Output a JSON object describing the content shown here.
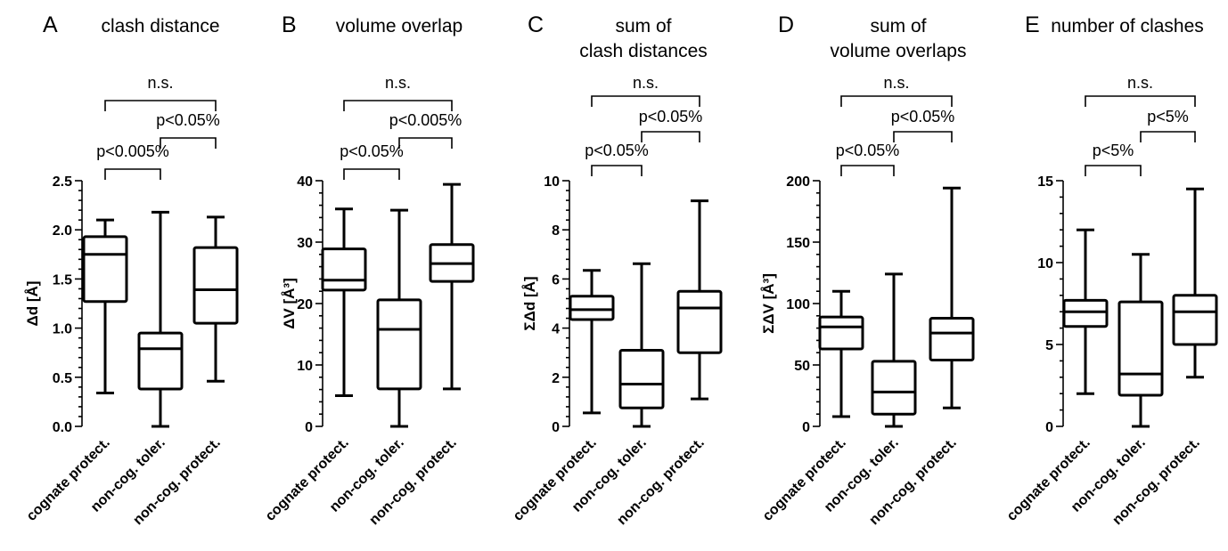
{
  "chart_data": [
    {
      "type": "box",
      "letter": "A",
      "title": [
        "clash distance"
      ],
      "ylabel": "Δd [Å]",
      "ylim": [
        0,
        2.5
      ],
      "yticks": [
        "0.0",
        "0.5",
        "1.0",
        "1.5",
        "2.0",
        "2.5"
      ],
      "categories": [
        "cognate protect.",
        "non-cog. toler.",
        "non-cog. protect."
      ],
      "boxes": [
        {
          "min": 0.34,
          "q1": 1.27,
          "median": 1.75,
          "q3": 1.93,
          "max": 2.1
        },
        {
          "min": 0.0,
          "q1": 0.38,
          "median": 0.79,
          "q3": 0.95,
          "max": 2.18
        },
        {
          "min": 0.46,
          "q1": 1.05,
          "median": 1.39,
          "q3": 1.82,
          "max": 2.13
        }
      ],
      "comparisons": [
        {
          "from": 0,
          "to": 1,
          "label": "p<0.005%"
        },
        {
          "from": 1,
          "to": 2,
          "label": "p<0.05%"
        },
        {
          "from": 0,
          "to": 2,
          "label": "n.s."
        }
      ]
    },
    {
      "type": "box",
      "letter": "B",
      "title": [
        "volume overlap"
      ],
      "ylabel": "ΔV [Å³]",
      "ylim": [
        0,
        40
      ],
      "yticks": [
        "0",
        "10",
        "20",
        "30",
        "40"
      ],
      "categories": [
        "cognate protect.",
        "non-cog. toler.",
        "non-cog. protect."
      ],
      "boxes": [
        {
          "min": 5.0,
          "q1": 22.2,
          "median": 23.8,
          "q3": 28.9,
          "max": 35.4
        },
        {
          "min": 0.0,
          "q1": 6.1,
          "median": 15.8,
          "q3": 20.6,
          "max": 35.2
        },
        {
          "min": 6.1,
          "q1": 23.6,
          "median": 26.5,
          "q3": 29.6,
          "max": 39.4
        }
      ],
      "comparisons": [
        {
          "from": 0,
          "to": 1,
          "label": "p<0.05%"
        },
        {
          "from": 1,
          "to": 2,
          "label": "p<0.005%"
        },
        {
          "from": 0,
          "to": 2,
          "label": "n.s."
        }
      ]
    },
    {
      "type": "box",
      "letter": "C",
      "title": [
        "sum of",
        "clash distances"
      ],
      "ylabel": "ΣΔd [Å]",
      "ylim": [
        0,
        10
      ],
      "yticks": [
        "0",
        "2",
        "4",
        "6",
        "8",
        "10"
      ],
      "categories": [
        "cognate protect.",
        "non-cog. toler.",
        "non-cog. protect."
      ],
      "boxes": [
        {
          "min": 0.55,
          "q1": 4.35,
          "median": 4.75,
          "q3": 5.3,
          "max": 6.35
        },
        {
          "min": 0.0,
          "q1": 0.75,
          "median": 1.72,
          "q3": 3.1,
          "max": 6.62
        },
        {
          "min": 1.12,
          "q1": 3.0,
          "median": 4.82,
          "q3": 5.5,
          "max": 9.18
        }
      ],
      "comparisons": [
        {
          "from": 0,
          "to": 1,
          "label": "p<0.05%"
        },
        {
          "from": 1,
          "to": 2,
          "label": "p<0.05%"
        },
        {
          "from": 0,
          "to": 2,
          "label": "n.s."
        }
      ]
    },
    {
      "type": "box",
      "letter": "D",
      "title": [
        "sum of",
        "volume overlaps"
      ],
      "ylabel": "ΣΔV [Å³]",
      "ylim": [
        0,
        200
      ],
      "yticks": [
        "0",
        "50",
        "100",
        "150",
        "200"
      ],
      "categories": [
        "cognate protect.",
        "non-cog. toler.",
        "non-cog. protect."
      ],
      "boxes": [
        {
          "min": 8,
          "q1": 63,
          "median": 81,
          "q3": 89,
          "max": 110
        },
        {
          "min": 0,
          "q1": 10,
          "median": 28,
          "q3": 53,
          "max": 124
        },
        {
          "min": 15,
          "q1": 54,
          "median": 76,
          "q3": 88,
          "max": 194
        }
      ],
      "comparisons": [
        {
          "from": 0,
          "to": 1,
          "label": "p<0.05%"
        },
        {
          "from": 1,
          "to": 2,
          "label": "p<0.05%"
        },
        {
          "from": 0,
          "to": 2,
          "label": "n.s."
        }
      ]
    },
    {
      "type": "box",
      "letter": "E",
      "title": [
        "number of clashes"
      ],
      "ylabel": "",
      "ylim": [
        0,
        15
      ],
      "yticks": [
        "0",
        "5",
        "10",
        "15"
      ],
      "categories": [
        "cognate protect.",
        "non-cog. toler.",
        "non-cog. protect."
      ],
      "boxes": [
        {
          "min": 2.0,
          "q1": 6.1,
          "median": 7.0,
          "q3": 7.7,
          "max": 12.0
        },
        {
          "min": 0.0,
          "q1": 1.9,
          "median": 3.2,
          "q3": 7.6,
          "max": 10.5
        },
        {
          "min": 3.0,
          "q1": 5.0,
          "median": 7.0,
          "q3": 8.0,
          "max": 14.5
        }
      ],
      "comparisons": [
        {
          "from": 0,
          "to": 1,
          "label": "p<5%"
        },
        {
          "from": 1,
          "to": 2,
          "label": "p<5%"
        },
        {
          "from": 0,
          "to": 2,
          "label": "n.s."
        }
      ]
    }
  ]
}
